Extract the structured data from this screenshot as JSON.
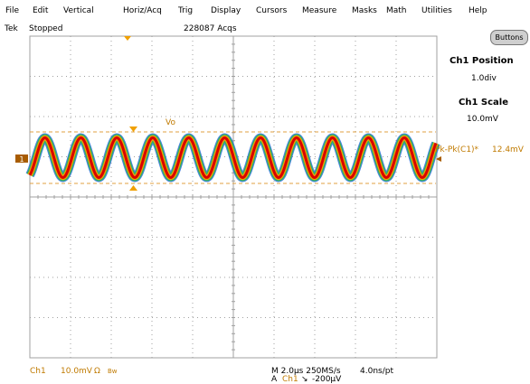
{
  "menu": [
    "File",
    "Edit",
    "Vertical",
    "Horiz/Acq",
    "Trig",
    "Display",
    "Cursors",
    "Measure",
    "Masks",
    "Math",
    "Utilities",
    "Help"
  ],
  "status": {
    "brand": "Tek",
    "state": "Stopped",
    "acqs": "228087 Acqs"
  },
  "buttons_label": "Buttons",
  "panel": {
    "pos_title": "Ch1 Position",
    "pos_value": "1.0div",
    "scale_title": "Ch1 Scale",
    "scale_value": "10.0mV"
  },
  "waveform": {
    "label": "Vo",
    "channel_marker": "1",
    "cycles": 11.3,
    "color_core": "#d80000",
    "color_mid": "#f0a000",
    "color_outer": "#30b060"
  },
  "measurement": {
    "name": "Pk-Pk(C1)*",
    "value": "12.4mV"
  },
  "bottom": {
    "ch": "Ch1",
    "ch_scale": "10.0mV",
    "ohm_symbol": "Ω",
    "bw": "Bw",
    "timebase": "M 2.0µs 250MS/s",
    "trigger_prefix": "A",
    "trigger_ch": "Ch1",
    "trigger_slope": "↘",
    "trigger_level": "-200µV",
    "resolution": "4.0ns/pt"
  },
  "colors": {
    "grid": "#a0a0a0",
    "trace_label": "#c07a00",
    "cursor_line": "#e2a040"
  }
}
